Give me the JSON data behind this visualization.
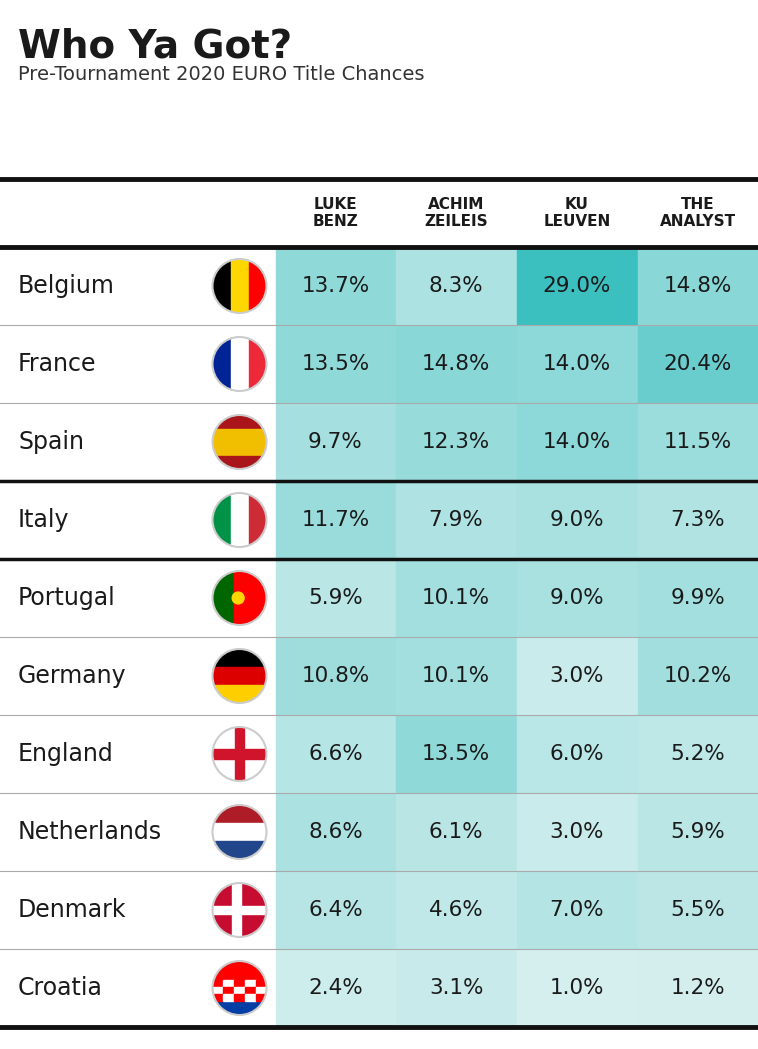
{
  "title": "Who Ya Got?",
  "subtitle": "Pre-Tournament 2020 EURO Title Chances",
  "columns": [
    "LUKE\nBENZ",
    "ACHIM\nZEILEIS",
    "KU\nLEUVEN",
    "THE\nANALYST"
  ],
  "countries": [
    "Belgium",
    "France",
    "Spain",
    "Italy",
    "Portugal",
    "Germany",
    "England",
    "Netherlands",
    "Denmark",
    "Croatia"
  ],
  "values": [
    [
      13.7,
      8.3,
      29.0,
      14.8
    ],
    [
      13.5,
      14.8,
      14.0,
      20.4
    ],
    [
      9.7,
      12.3,
      14.0,
      11.5
    ],
    [
      11.7,
      7.9,
      9.0,
      7.3
    ],
    [
      5.9,
      10.1,
      9.0,
      9.9
    ],
    [
      10.8,
      10.1,
      3.0,
      10.2
    ],
    [
      6.6,
      13.5,
      6.0,
      5.2
    ],
    [
      8.6,
      6.1,
      3.0,
      5.9
    ],
    [
      6.4,
      4.6,
      7.0,
      5.5
    ],
    [
      2.4,
      3.1,
      1.0,
      1.2
    ]
  ],
  "bg_color": "#ffffff",
  "thick_sep_after": [
    2,
    3
  ],
  "vmin": 1.0,
  "vmax": 29.0,
  "color_high": [
    0.231,
    0.749,
    0.749
  ],
  "color_low": [
    0.835,
    0.933,
    0.933
  ]
}
